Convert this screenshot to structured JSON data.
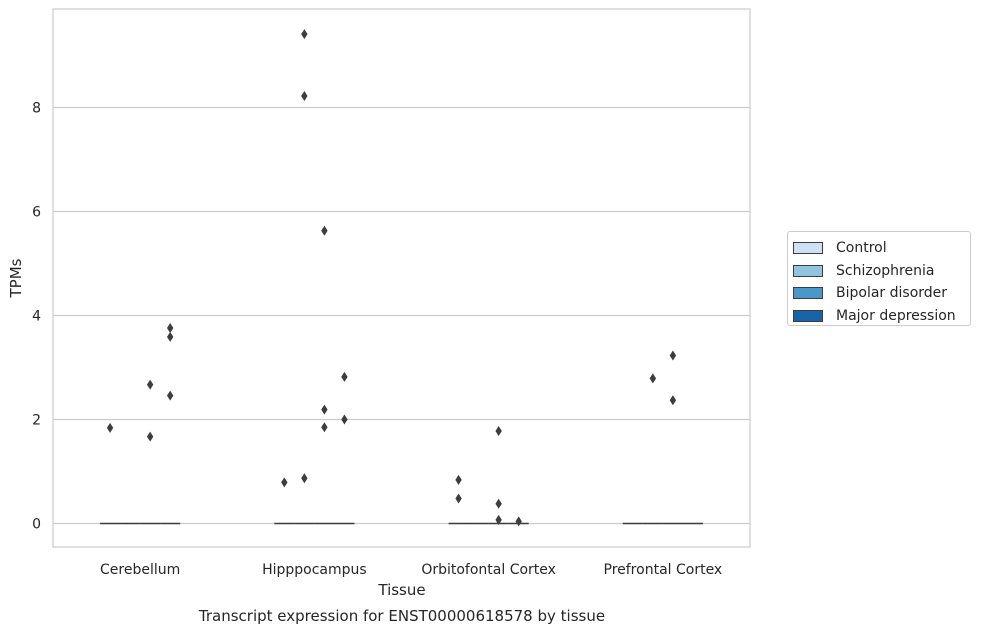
{
  "chart_data": {
    "type": "box",
    "title": "Transcript expression for ENST00000618578 by tissue",
    "xlabel": "Tissue",
    "ylabel": "TPMs",
    "ylim": [
      -0.45,
      9.9
    ],
    "yticks": [
      0,
      2,
      4,
      6,
      8
    ],
    "grid": true,
    "legend_placement": "right",
    "categories": [
      "Cerebellum",
      "Hipppocampus",
      "Orbitofontal Cortex",
      "Prefrontal Cortex"
    ],
    "series": [
      {
        "name": "Control",
        "color": "#cfe1f2",
        "medians": [
          0,
          0,
          0,
          0
        ],
        "outliers": [
          [
            1.84
          ],
          [
            0.79
          ],
          [
            0.84,
            0.48
          ],
          []
        ]
      },
      {
        "name": "Schizophrenia",
        "color": "#93c4de",
        "medians": [
          0,
          0,
          0,
          0
        ],
        "outliers": [
          [],
          [
            0.87,
            8.22,
            9.41
          ],
          [],
          [
            2.79
          ]
        ]
      },
      {
        "name": "Bipolar disorder",
        "color": "#4a98c9",
        "medians": [
          0,
          0,
          0,
          0
        ],
        "outliers": [
          [
            1.67,
            2.67
          ],
          [
            1.85,
            2.19,
            5.63
          ],
          [
            1.78,
            0.38,
            0.07
          ],
          [
            2.37,
            3.23
          ]
        ]
      },
      {
        "name": "Major depression",
        "color": "#1764ab",
        "medians": [
          0,
          0,
          0,
          0
        ],
        "outliers": [
          [
            2.46,
            3.59,
            3.76
          ],
          [
            2.0,
            2.82
          ],
          [
            0.04
          ],
          []
        ]
      }
    ]
  }
}
